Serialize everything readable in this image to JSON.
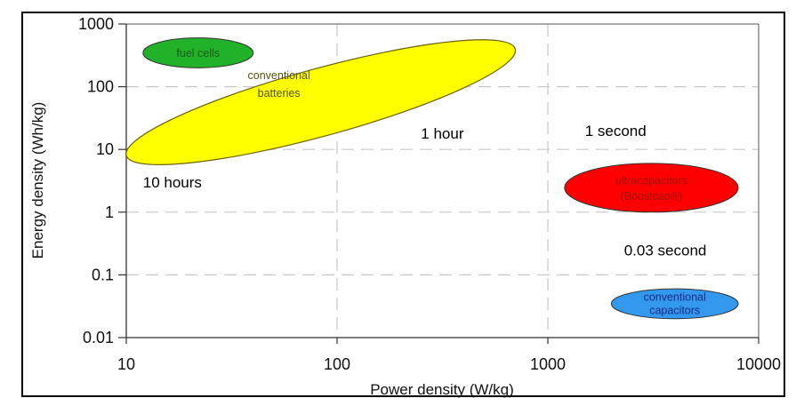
{
  "chart_data": {
    "type": "scatter",
    "subtype": "ragone-plot (log-log, ellipse regions)",
    "title": "",
    "xlabel": "Power density (W/kg)",
    "ylabel": "Energy density (Wh/kg)",
    "xscale": "log",
    "yscale": "log",
    "xlim": [
      10,
      10000
    ],
    "ylim": [
      0.01,
      1000
    ],
    "x_ticks": [
      "10",
      "100",
      "1000",
      "10000"
    ],
    "y_ticks": [
      "1000",
      "100",
      "10",
      "1",
      "0.1",
      "0.01"
    ],
    "grid": "dashed, light gray, at each decade",
    "legend": "none",
    "regions": [
      {
        "name": "fuel cells",
        "label_lines": [
          "fuel cells"
        ],
        "color": "#22b22a",
        "text_color": "#1a5c1a",
        "power_range_wkg": [
          12,
          40
        ],
        "energy_range_whkg": [
          200,
          600
        ]
      },
      {
        "name": "conventional batteries",
        "label_lines": [
          "conventional",
          "batteries"
        ],
        "color": "#ffff00",
        "text_color": "#55550a",
        "power_range_wkg": [
          10,
          700
        ],
        "energy_range_whkg": [
          8,
          400
        ],
        "orientation": "tilted upward"
      },
      {
        "name": "ultracapacitors (Boostcap®)",
        "label_lines": [
          "ultracapacitors",
          "(Boostcap®)"
        ],
        "color": "#ff0000",
        "text_color": "#a01010",
        "power_range_wkg": [
          1200,
          8000
        ],
        "energy_range_whkg": [
          1,
          6
        ]
      },
      {
        "name": "conventional capacitors",
        "label_lines": [
          "conventional",
          "capacitors"
        ],
        "color": "#3399ee",
        "text_color": "#1a2a88",
        "power_range_wkg": [
          2000,
          8000
        ],
        "energy_range_whkg": [
          0.02,
          0.06
        ]
      }
    ],
    "annotations": [
      {
        "text": "10 hours",
        "x": 12,
        "y": 3
      },
      {
        "text": "1 hour",
        "x": 250,
        "y": 18
      },
      {
        "text": "1 second",
        "x": 1500,
        "y": 20
      },
      {
        "text": "0.03 second",
        "x": 2300,
        "y": 0.25
      }
    ]
  }
}
